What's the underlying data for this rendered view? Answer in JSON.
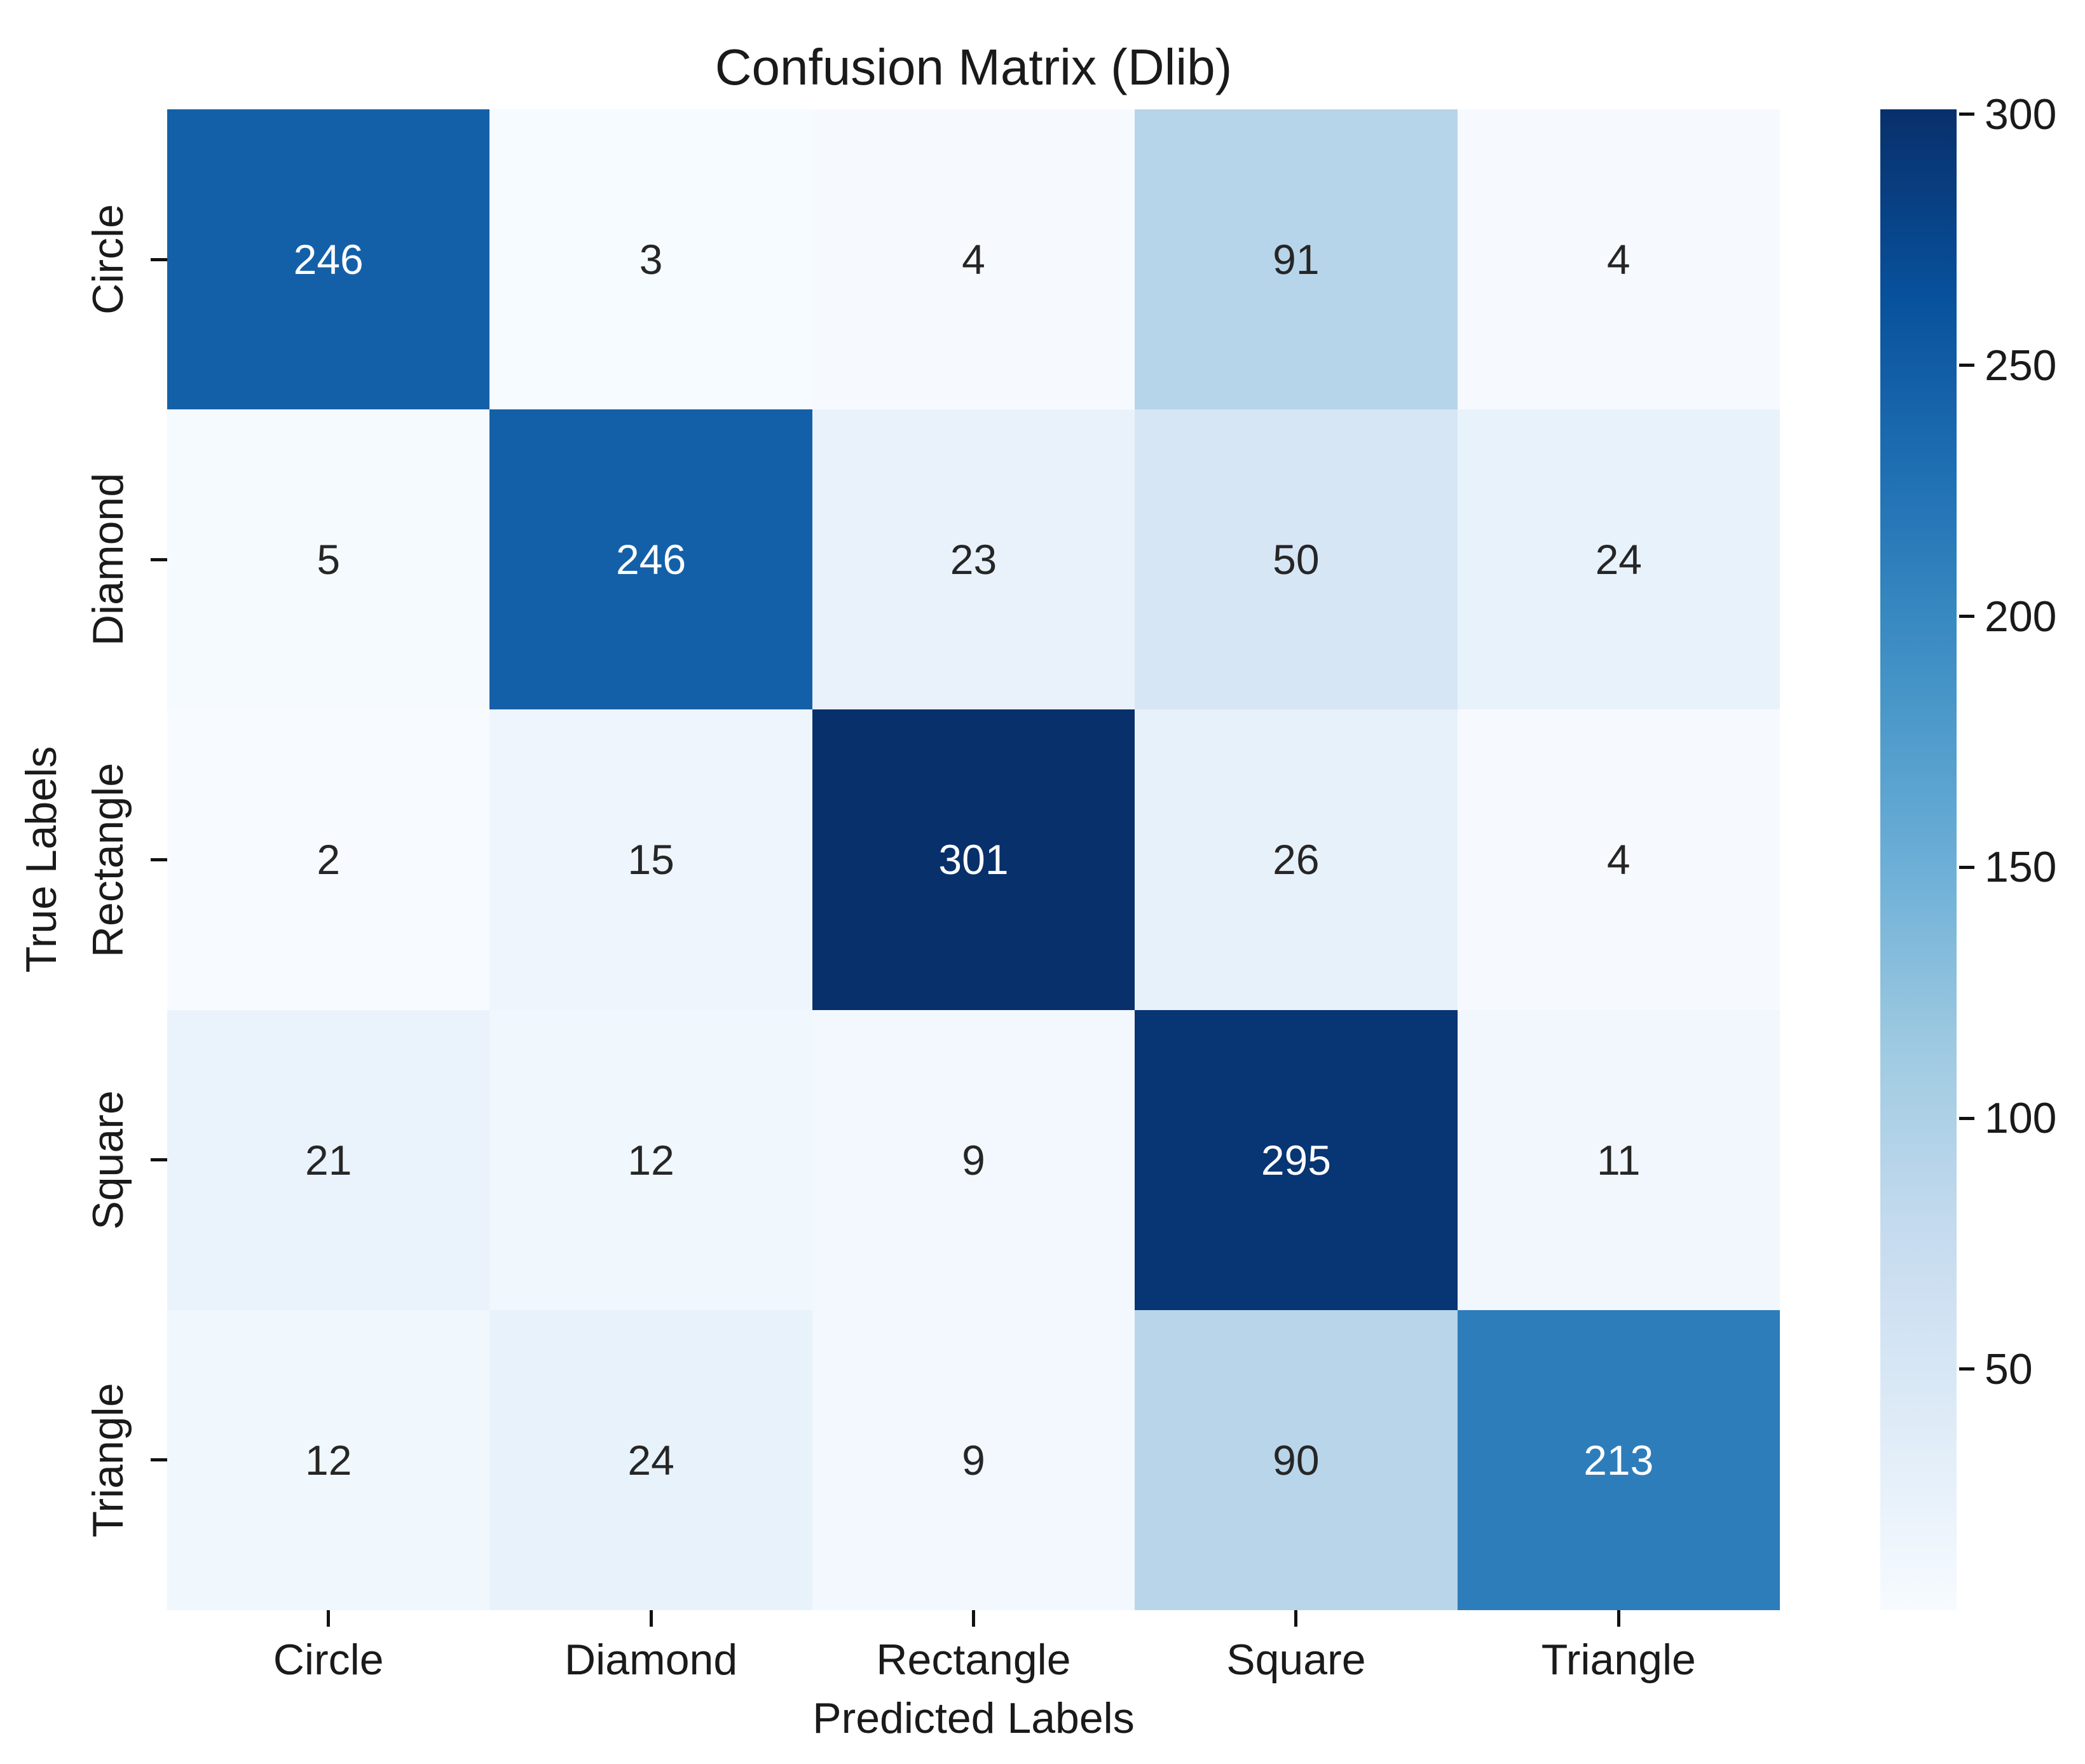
{
  "figure": {
    "background": "#ffffff"
  },
  "chart_data": {
    "type": "heatmap",
    "title": "Confusion Matrix (Dlib)",
    "xlabel": "Predicted Labels",
    "ylabel": "True Labels",
    "x_categories": [
      "Circle",
      "Diamond",
      "Rectangle",
      "Square",
      "Triangle"
    ],
    "y_categories": [
      "Circle",
      "Diamond",
      "Rectangle",
      "Square",
      "Triangle"
    ],
    "matrix": [
      [
        246,
        3,
        4,
        91,
        4
      ],
      [
        5,
        246,
        23,
        50,
        24
      ],
      [
        2,
        15,
        301,
        26,
        4
      ],
      [
        21,
        12,
        9,
        295,
        11
      ],
      [
        12,
        24,
        9,
        90,
        213
      ]
    ],
    "annotated": true,
    "grid": false,
    "colormap": "Blues",
    "vmin": 2,
    "vmax": 301,
    "colorbar_position": "right",
    "colorbar_ticks": [
      50,
      100,
      150,
      200,
      250,
      300
    ],
    "colors": {
      "annot_dark": "#262626",
      "annot_light": "#ffffff",
      "tick_mark": "#111111",
      "blues_stops": [
        [
          0.0,
          "#f7fbff"
        ],
        [
          0.125,
          "#deebf7"
        ],
        [
          0.25,
          "#c6dbef"
        ],
        [
          0.375,
          "#9ecae1"
        ],
        [
          0.5,
          "#6baed6"
        ],
        [
          0.625,
          "#4292c6"
        ],
        [
          0.75,
          "#2171b5"
        ],
        [
          0.875,
          "#08519c"
        ],
        [
          1.0,
          "#08306b"
        ]
      ]
    }
  }
}
